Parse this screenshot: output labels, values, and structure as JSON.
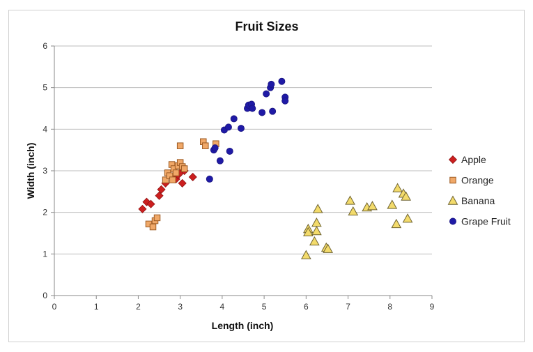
{
  "chart_data": {
    "type": "scatter",
    "title": "Fruit Sizes",
    "xlabel": "Length (inch)",
    "ylabel": "Width  (inch)",
    "xlim": [
      0,
      9
    ],
    "ylim": [
      0,
      6
    ],
    "x_ticks": [
      0,
      1,
      2,
      3,
      4,
      5,
      6,
      7,
      8,
      9
    ],
    "y_ticks": [
      0,
      1,
      2,
      3,
      4,
      5,
      6
    ],
    "grid": "horizontal",
    "legend_position": "right",
    "series": [
      {
        "name": "Apple",
        "marker": "diamond",
        "color": "#cc1f1f",
        "stroke": "#8f1515",
        "points": [
          {
            "x": 2.1,
            "y": 2.08
          },
          {
            "x": 2.2,
            "y": 2.25
          },
          {
            "x": 2.3,
            "y": 2.2
          },
          {
            "x": 2.5,
            "y": 2.4
          },
          {
            "x": 2.55,
            "y": 2.55
          },
          {
            "x": 2.65,
            "y": 2.7
          },
          {
            "x": 2.8,
            "y": 2.85
          },
          {
            "x": 2.9,
            "y": 2.8
          },
          {
            "x": 2.95,
            "y": 2.9
          },
          {
            "x": 3.0,
            "y": 2.95
          },
          {
            "x": 3.05,
            "y": 2.7
          },
          {
            "x": 3.1,
            "y": 3.0
          },
          {
            "x": 3.3,
            "y": 2.85
          }
        ]
      },
      {
        "name": "Orange",
        "marker": "square",
        "color": "#f0a868",
        "stroke": "#9c5a23",
        "points": [
          {
            "x": 2.25,
            "y": 1.72
          },
          {
            "x": 2.35,
            "y": 1.65
          },
          {
            "x": 2.4,
            "y": 1.8
          },
          {
            "x": 2.45,
            "y": 1.87
          },
          {
            "x": 2.65,
            "y": 2.78
          },
          {
            "x": 2.7,
            "y": 2.95
          },
          {
            "x": 2.75,
            "y": 2.88
          },
          {
            "x": 2.8,
            "y": 3.15
          },
          {
            "x": 2.82,
            "y": 2.78
          },
          {
            "x": 2.85,
            "y": 3.05
          },
          {
            "x": 2.9,
            "y": 2.95
          },
          {
            "x": 2.95,
            "y": 3.12
          },
          {
            "x": 3.0,
            "y": 3.2
          },
          {
            "x": 3.0,
            "y": 3.6
          },
          {
            "x": 3.05,
            "y": 3.1
          },
          {
            "x": 3.1,
            "y": 3.05
          },
          {
            "x": 3.55,
            "y": 3.7
          },
          {
            "x": 3.6,
            "y": 3.6
          },
          {
            "x": 3.85,
            "y": 3.65
          }
        ]
      },
      {
        "name": "Banana",
        "marker": "triangle",
        "color": "#f3db6b",
        "stroke": "#6f6330",
        "points": [
          {
            "x": 6.0,
            "y": 0.97
          },
          {
            "x": 6.05,
            "y": 1.6
          },
          {
            "x": 6.05,
            "y": 1.52
          },
          {
            "x": 6.2,
            "y": 1.3
          },
          {
            "x": 6.25,
            "y": 1.55
          },
          {
            "x": 6.25,
            "y": 1.75
          },
          {
            "x": 6.28,
            "y": 2.08
          },
          {
            "x": 6.48,
            "y": 1.15
          },
          {
            "x": 6.52,
            "y": 1.12
          },
          {
            "x": 7.05,
            "y": 2.28
          },
          {
            "x": 7.12,
            "y": 2.02
          },
          {
            "x": 7.45,
            "y": 2.12
          },
          {
            "x": 7.58,
            "y": 2.15
          },
          {
            "x": 8.05,
            "y": 2.18
          },
          {
            "x": 8.15,
            "y": 1.72
          },
          {
            "x": 8.18,
            "y": 2.58
          },
          {
            "x": 8.32,
            "y": 2.45
          },
          {
            "x": 8.38,
            "y": 2.38
          },
          {
            "x": 8.42,
            "y": 1.85
          }
        ]
      },
      {
        "name": "Grape Fruit",
        "marker": "circle",
        "color": "#1f1aa6",
        "stroke": "#1a1580",
        "points": [
          {
            "x": 3.7,
            "y": 2.8
          },
          {
            "x": 3.8,
            "y": 3.5
          },
          {
            "x": 3.83,
            "y": 3.55
          },
          {
            "x": 3.95,
            "y": 3.24
          },
          {
            "x": 4.05,
            "y": 3.98
          },
          {
            "x": 4.15,
            "y": 4.05
          },
          {
            "x": 4.18,
            "y": 3.47
          },
          {
            "x": 4.28,
            "y": 4.25
          },
          {
            "x": 4.45,
            "y": 4.02
          },
          {
            "x": 4.6,
            "y": 4.5
          },
          {
            "x": 4.63,
            "y": 4.58
          },
          {
            "x": 4.7,
            "y": 4.6
          },
          {
            "x": 4.72,
            "y": 4.5
          },
          {
            "x": 4.95,
            "y": 4.4
          },
          {
            "x": 5.05,
            "y": 4.85
          },
          {
            "x": 5.15,
            "y": 5.0
          },
          {
            "x": 5.17,
            "y": 5.08
          },
          {
            "x": 5.2,
            "y": 4.43
          },
          {
            "x": 5.42,
            "y": 5.15
          },
          {
            "x": 5.5,
            "y": 4.77
          },
          {
            "x": 5.5,
            "y": 4.68
          }
        ]
      }
    ]
  }
}
